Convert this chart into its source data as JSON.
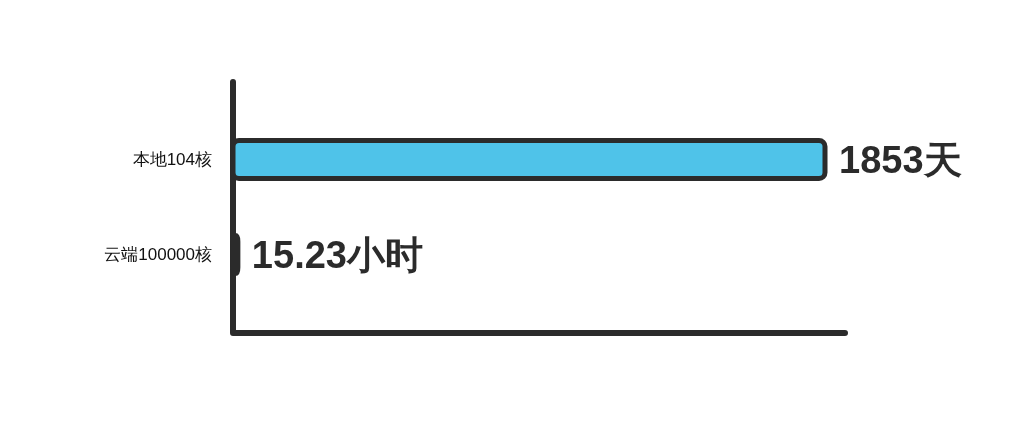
{
  "chart_data": {
    "type": "bar",
    "orientation": "horizontal",
    "categories": [
      "本地104核",
      "云端100000核"
    ],
    "values": [
      1853,
      15.23
    ],
    "value_labels": [
      "1853天",
      "15.23小时"
    ],
    "color": "#4fc3e9"
  }
}
